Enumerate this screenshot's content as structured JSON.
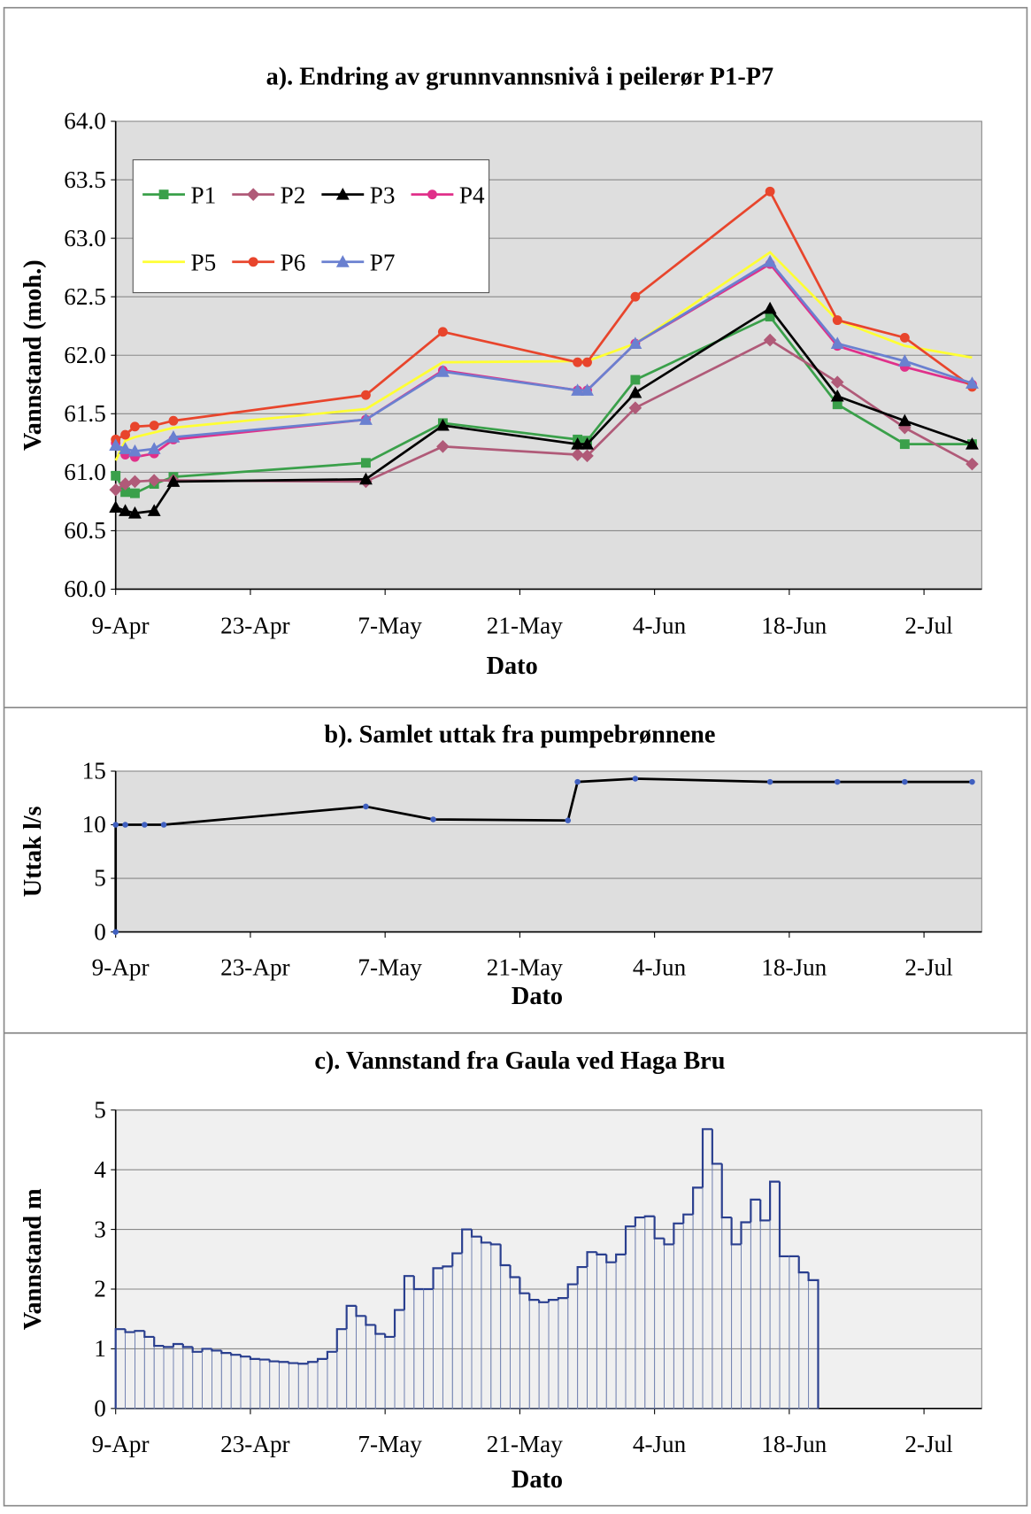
{
  "chart_data": [
    {
      "type": "line",
      "title": "a). Endring av grunnvannsnivå i peilerør P1-P7",
      "xlabel": "Dato",
      "ylabel": "Vannstand (moh.)",
      "x": [
        "9-Apr",
        "10-Apr",
        "11-Apr",
        "13-Apr",
        "15-Apr",
        "5-May",
        "13-May",
        "27-May",
        "28-May",
        "2-Jun",
        "16-Jun",
        "23-Jun",
        "30-Jun",
        "7-Jul"
      ],
      "series": [
        {
          "name": "P1",
          "color": "#3aa04a",
          "marker": "square",
          "values": [
            60.97,
            60.83,
            60.82,
            60.9,
            60.96,
            61.08,
            61.42,
            61.28,
            61.27,
            61.79,
            62.33,
            61.58,
            61.24,
            61.24
          ]
        },
        {
          "name": "P2",
          "color": "#b05a78",
          "marker": "diamond",
          "values": [
            60.85,
            60.9,
            60.92,
            60.93,
            60.93,
            60.92,
            61.22,
            61.15,
            61.14,
            61.55,
            62.13,
            61.77,
            61.38,
            61.07
          ]
        },
        {
          "name": "P3",
          "color": "#000000",
          "marker": "triangle",
          "values": [
            60.7,
            60.67,
            60.65,
            60.67,
            60.92,
            60.94,
            61.4,
            61.24,
            61.24,
            61.68,
            62.4,
            61.65,
            61.44,
            61.24
          ]
        },
        {
          "name": "P4",
          "color": "#e0308a",
          "marker": "circle",
          "values": [
            61.25,
            61.15,
            61.13,
            61.16,
            61.28,
            61.45,
            61.87,
            61.7,
            61.7,
            62.1,
            62.78,
            62.08,
            61.9,
            61.75
          ]
        },
        {
          "name": "P5",
          "color": "#ffff33",
          "marker": "none",
          "values": [
            61.1,
            61.27,
            61.3,
            61.34,
            61.38,
            61.54,
            61.94,
            61.95,
            61.95,
            62.1,
            62.88,
            62.3,
            62.08,
            61.98
          ]
        },
        {
          "name": "P6",
          "color": "#e8452c",
          "marker": "circle",
          "values": [
            61.28,
            61.32,
            61.39,
            61.4,
            61.44,
            61.66,
            62.2,
            61.94,
            61.94,
            62.5,
            63.4,
            62.3,
            62.15,
            61.73
          ]
        },
        {
          "name": "P7",
          "color": "#6a80d0",
          "marker": "triangle",
          "values": [
            61.23,
            61.2,
            61.18,
            61.2,
            61.3,
            61.45,
            61.86,
            61.7,
            61.7,
            62.1,
            62.8,
            62.1,
            61.95,
            61.76
          ]
        }
      ],
      "xlim": [
        "9-Apr",
        "8-Jul"
      ],
      "xticks": [
        "9-Apr",
        "23-Apr",
        "7-May",
        "21-May",
        "4-Jun",
        "18-Jun",
        "2-Jul"
      ],
      "ylim": [
        60,
        64
      ],
      "yticks": [
        {
          "value": 60,
          "label": "60.0"
        },
        {
          "value": 60.5,
          "label": "60.5"
        },
        {
          "value": 61,
          "label": "61.0"
        },
        {
          "value": 61.5,
          "label": "61.5"
        },
        {
          "value": 62,
          "label": "62.0"
        },
        {
          "value": 62.5,
          "label": "62.5"
        },
        {
          "value": 63,
          "label": "63.0"
        },
        {
          "value": 63.5,
          "label": "63.5"
        },
        {
          "value": 64,
          "label": "64.0"
        }
      ],
      "grid": true,
      "legend": "upper left"
    },
    {
      "type": "line",
      "title": "b). Samlet uttak fra pumpebrønnene",
      "xlabel": "Dato",
      "ylabel": "Uttak l/s",
      "x": [
        "9-Apr",
        "9-Apr",
        "10-Apr",
        "12-Apr",
        "14-Apr",
        "5-May",
        "12-May",
        "26-May",
        "27-May",
        "2-Jun",
        "16-Jun",
        "23-Jun",
        "30-Jun",
        "7-Jul"
      ],
      "values": [
        0,
        10,
        10,
        10,
        10,
        11.7,
        10.5,
        10.4,
        14,
        14.3,
        14,
        14,
        14,
        14
      ],
      "color": "#000000",
      "marker_color": "#4060c0",
      "xlim": [
        "9-Apr",
        "8-Jul"
      ],
      "xticks": [
        "9-Apr",
        "23-Apr",
        "7-May",
        "21-May",
        "4-Jun",
        "18-Jun",
        "2-Jul"
      ],
      "ylim": [
        0,
        15
      ],
      "yticks": [
        0,
        5,
        10,
        15
      ],
      "grid": true
    },
    {
      "type": "bar",
      "title": "c). Vannstand fra Gaula ved Haga Bru",
      "xlabel": "Dato",
      "ylabel": "Vannstand m",
      "x": [
        "9-Apr",
        "10-Apr",
        "11-Apr",
        "12-Apr",
        "13-Apr",
        "14-Apr",
        "15-Apr",
        "16-Apr",
        "17-Apr",
        "18-Apr",
        "19-Apr",
        "20-Apr",
        "21-Apr",
        "22-Apr",
        "23-Apr",
        "24-Apr",
        "25-Apr",
        "26-Apr",
        "27-Apr",
        "28-Apr",
        "29-Apr",
        "30-Apr",
        "1-May",
        "2-May",
        "3-May",
        "4-May",
        "5-May",
        "6-May",
        "7-May",
        "8-May",
        "9-May",
        "10-May",
        "11-May",
        "12-May",
        "13-May",
        "14-May",
        "15-May",
        "16-May",
        "17-May",
        "18-May",
        "19-May",
        "20-May",
        "21-May",
        "22-May",
        "23-May",
        "24-May",
        "25-May",
        "26-May",
        "27-May",
        "28-May",
        "29-May",
        "30-May",
        "31-May",
        "1-Jun",
        "2-Jun",
        "3-Jun",
        "4-Jun",
        "5-Jun",
        "6-Jun",
        "7-Jun",
        "8-Jun",
        "9-Jun",
        "10-Jun",
        "11-Jun",
        "12-Jun",
        "13-Jun",
        "14-Jun",
        "15-Jun",
        "16-Jun",
        "17-Jun",
        "18-Jun",
        "19-Jun",
        "20-Jun"
      ],
      "values": [
        1.33,
        1.28,
        1.3,
        1.2,
        1.05,
        1.03,
        1.08,
        1.03,
        0.95,
        1.0,
        0.97,
        0.93,
        0.9,
        0.87,
        0.83,
        0.82,
        0.79,
        0.78,
        0.76,
        0.75,
        0.78,
        0.83,
        0.95,
        1.33,
        1.72,
        1.55,
        1.4,
        1.25,
        1.2,
        1.65,
        2.22,
        2.0,
        2.0,
        2.35,
        2.38,
        2.6,
        3.0,
        2.88,
        2.78,
        2.75,
        2.4,
        2.2,
        1.93,
        1.82,
        1.78,
        1.82,
        1.85,
        2.08,
        2.37,
        2.62,
        2.58,
        2.45,
        2.58,
        3.05,
        3.2,
        3.22,
        2.85,
        2.75,
        3.1,
        3.25,
        3.7,
        4.68,
        4.1,
        3.2,
        2.75,
        3.12,
        3.5,
        3.15,
        3.8,
        2.55,
        2.55,
        2.28,
        2.15
      ],
      "color": "#2a3f8f",
      "xlim": [
        "9-Apr",
        "8-Jul"
      ],
      "xticks": [
        "9-Apr",
        "23-Apr",
        "7-May",
        "21-May",
        "4-Jun",
        "18-Jun",
        "2-Jul"
      ],
      "ylim": [
        0,
        5
      ],
      "yticks": [
        0,
        1,
        2,
        3,
        4,
        5
      ],
      "grid": true
    }
  ]
}
